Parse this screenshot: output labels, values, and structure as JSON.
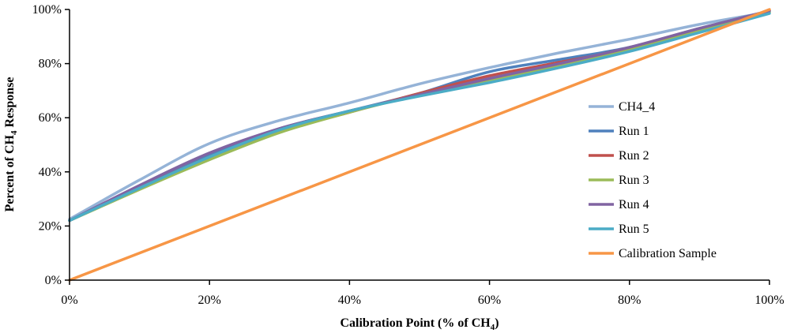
{
  "chart_data": {
    "type": "line",
    "xlabel_main": "Calibration Point (% of CH",
    "xlabel_sub": "4",
    "xlabel_end": ")",
    "ylabel_main": "Percent of CH",
    "ylabel_sub": "4",
    "ylabel_end": " Response",
    "xlim": [
      0,
      100
    ],
    "ylim": [
      0,
      100
    ],
    "x_ticks": [
      "0%",
      "20%",
      "40%",
      "60%",
      "80%",
      "100%"
    ],
    "y_ticks": [
      "0%",
      "20%",
      "40%",
      "60%",
      "80%",
      "100%"
    ],
    "grid": false,
    "legend_position": "right",
    "series": [
      {
        "name": "CH4_4",
        "color": "#95B3D7",
        "x": [
          0,
          10,
          20,
          30,
          40,
          50,
          60,
          70,
          80,
          90,
          100
        ],
        "y": [
          22.5,
          37,
          50.5,
          59,
          65.5,
          72.5,
          78.5,
          84,
          89,
          94.5,
          99
        ]
      },
      {
        "name": "Run 1",
        "color": "#4F81BD",
        "x": [
          0,
          10,
          20,
          30,
          40,
          50,
          60,
          70,
          80,
          90,
          100
        ],
        "y": [
          22,
          34.5,
          46.5,
          56,
          62.5,
          69,
          77,
          81.5,
          86,
          93,
          99.5
        ]
      },
      {
        "name": "Run 2",
        "color": "#C0504D",
        "x": [
          0,
          10,
          20,
          30,
          40,
          50,
          60,
          70,
          80,
          90,
          100
        ],
        "y": [
          22,
          34,
          45.5,
          55,
          62,
          69,
          75.5,
          80.5,
          85.5,
          92.5,
          99.5
        ]
      },
      {
        "name": "Run 3",
        "color": "#9BBB59",
        "x": [
          0,
          10,
          20,
          30,
          40,
          50,
          60,
          70,
          80,
          90,
          100
        ],
        "y": [
          22,
          33.5,
          44.5,
          54.5,
          62,
          68.5,
          74,
          79,
          85,
          92,
          99
        ]
      },
      {
        "name": "Run 4",
        "color": "#8064A2",
        "x": [
          0,
          10,
          20,
          30,
          40,
          50,
          60,
          70,
          80,
          90,
          100
        ],
        "y": [
          22,
          35,
          47,
          56,
          62.5,
          68.5,
          74.5,
          80,
          86,
          93,
          99.5
        ]
      },
      {
        "name": "Run 5",
        "color": "#4BACC6",
        "x": [
          0,
          10,
          20,
          30,
          40,
          50,
          60,
          70,
          80,
          90,
          100
        ],
        "y": [
          22,
          34,
          45.5,
          55.5,
          62.5,
          68,
          73,
          78.5,
          84.5,
          91.5,
          98.5
        ]
      },
      {
        "name": "Calibration Sample",
        "color": "#F79646",
        "x": [
          0,
          100
        ],
        "y": [
          0,
          100
        ]
      }
    ]
  }
}
